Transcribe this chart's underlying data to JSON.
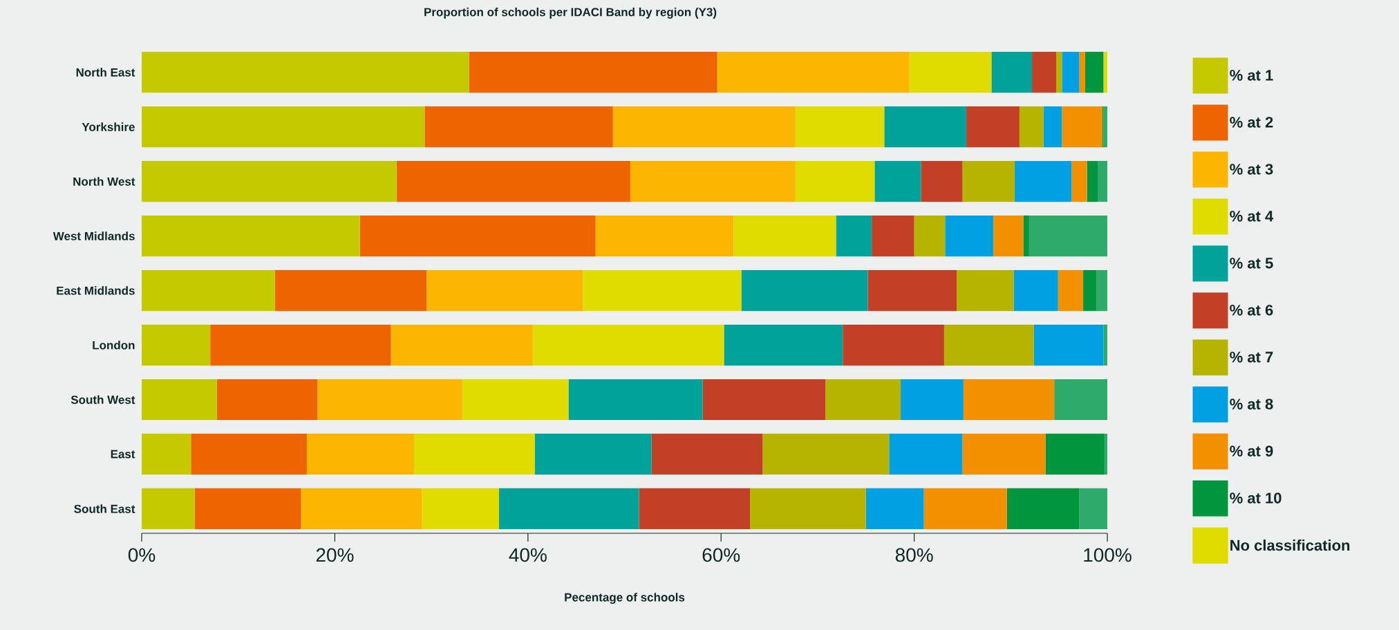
{
  "chart_data": {
    "type": "bar",
    "orientation": "horizontal",
    "stacked": true,
    "title": "Proportion of schools per IDACI Band by region (Y3)",
    "xlabel": "Pecentage of schools",
    "categories": [
      "North East",
      "Yorkshire",
      "North West",
      "West Midlands",
      "East Midlands",
      "London",
      "South West",
      "East",
      "South East"
    ],
    "xlim": [
      0,
      100
    ],
    "xticks": [
      {
        "value": 0,
        "label": "0%"
      },
      {
        "value": 20,
        "label": "20%"
      },
      {
        "value": 40,
        "label": "40%"
      },
      {
        "value": 60,
        "label": "60%"
      },
      {
        "value": 80,
        "label": "80%"
      },
      {
        "value": 100,
        "label": "100%"
      }
    ],
    "grid": false,
    "legend": "right",
    "series": [
      {
        "name": "% at 1",
        "color": "#c5ca00",
        "values": [
          33.9,
          29.3,
          26.4,
          22.6,
          13.8,
          7.1,
          7.8,
          5.1,
          5.5
        ]
      },
      {
        "name": "% at 2",
        "color": "#ee6500",
        "values": [
          25.7,
          19.5,
          24.2,
          24.4,
          15.7,
          18.7,
          10.4,
          12.0,
          11.0
        ]
      },
      {
        "name": "% at 3",
        "color": "#fcb500",
        "values": [
          19.9,
          18.9,
          17.1,
          14.3,
          16.2,
          14.7,
          15.0,
          11.1,
          12.5
        ]
      },
      {
        "name": "% at 4",
        "color": "#e0dc00",
        "values": [
          8.5,
          9.2,
          8.2,
          10.6,
          16.4,
          19.8,
          11.0,
          12.5,
          8.0
        ]
      },
      {
        "name": "% at 5",
        "color": "#00a29a",
        "values": [
          4.2,
          8.5,
          4.8,
          3.7,
          13.1,
          12.3,
          13.9,
          12.1,
          14.5
        ]
      },
      {
        "name": "% at 6",
        "color": "#c24025",
        "values": [
          2.5,
          5.5,
          4.3,
          4.4,
          9.2,
          10.5,
          12.7,
          11.5,
          11.5
        ]
      },
      {
        "name": "% at 7",
        "color": "#b6b400",
        "values": [
          0.6,
          2.5,
          5.4,
          3.2,
          5.9,
          9.3,
          7.8,
          13.1,
          12.0
        ]
      },
      {
        "name": "% at 8",
        "color": "#00a0e2",
        "values": [
          1.8,
          1.9,
          5.9,
          5.0,
          4.6,
          7.2,
          6.5,
          7.6,
          6.0
        ]
      },
      {
        "name": "% at 9",
        "color": "#f39000",
        "values": [
          0.6,
          4.2,
          1.6,
          3.1,
          2.6,
          0,
          9.4,
          8.6,
          8.6
        ]
      },
      {
        "name": "% at 10",
        "color": "#00963d",
        "values": [
          1.9,
          0.1,
          1.1,
          0.6,
          1.4,
          0,
          0,
          6.1,
          7.5
        ]
      },
      {
        "name": "No classification",
        "color": "#e0dc00",
        "colors": [
          "#e0dc00",
          "#2eaa6a",
          "#2eaa6a",
          "#2eaa6a",
          "#2eaa6a",
          "#2eaa6a",
          "#2eaa6a",
          "#2eaa6a",
          "#2eaa6a"
        ],
        "values": [
          0.4,
          0.4,
          1.0,
          8.1,
          1.1,
          0.4,
          5.5,
          0.3,
          2.9
        ]
      }
    ]
  }
}
